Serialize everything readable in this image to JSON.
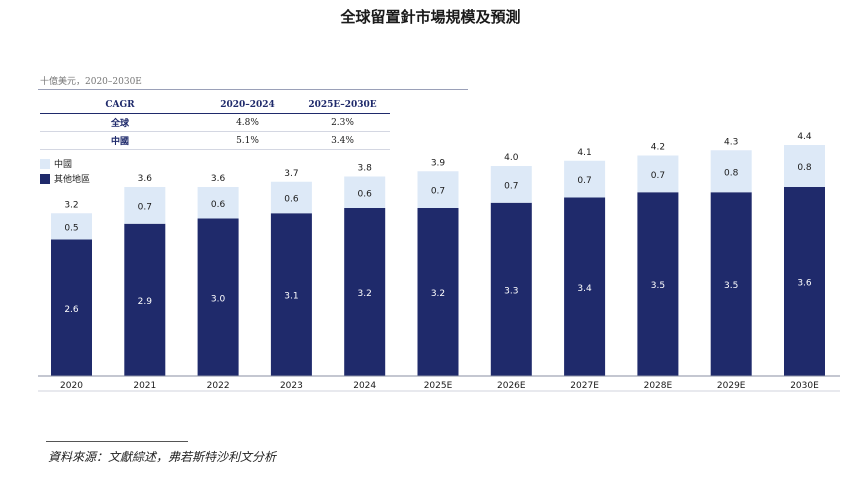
{
  "colors": {
    "china": "#dde9f7",
    "other": "#1f2a6b",
    "axis": "#8a8fa3"
  },
  "chart_data": {
    "type": "bar",
    "stacked": true,
    "title": "全球留置針市場規模及預測",
    "unit": "十億美元，2020–2030E",
    "categories": [
      "2020",
      "2021",
      "2022",
      "2023",
      "2024",
      "2025E",
      "2026E",
      "2027E",
      "2028E",
      "2029E",
      "2030E"
    ],
    "series": [
      {
        "name": "其他地區",
        "values": [
          2.6,
          2.9,
          3.0,
          3.1,
          3.2,
          3.2,
          3.3,
          3.4,
          3.5,
          3.5,
          3.6
        ]
      },
      {
        "name": "中國",
        "values": [
          0.5,
          0.7,
          0.6,
          0.6,
          0.6,
          0.7,
          0.7,
          0.7,
          0.7,
          0.8,
          0.8
        ]
      }
    ],
    "totals": [
      "3.2",
      "3.6",
      "3.6",
      "3.7",
      "3.8",
      "3.9",
      "4.0",
      "4.1",
      "4.2",
      "4.3",
      "4.4"
    ],
    "ylim": [
      0,
      4.4
    ],
    "grid": false,
    "legend_position": "top-left"
  },
  "cagr_table": {
    "headers": [
      "CAGR",
      "2020–2024",
      "2025E–2030E"
    ],
    "rows": [
      {
        "label": "全球",
        "values": [
          "4.8%",
          "2.3%"
        ]
      },
      {
        "label": "中國",
        "values": [
          "5.1%",
          "3.4%"
        ]
      }
    ]
  },
  "source": "資料來源：文獻綜述，弗若斯特沙利文分析"
}
